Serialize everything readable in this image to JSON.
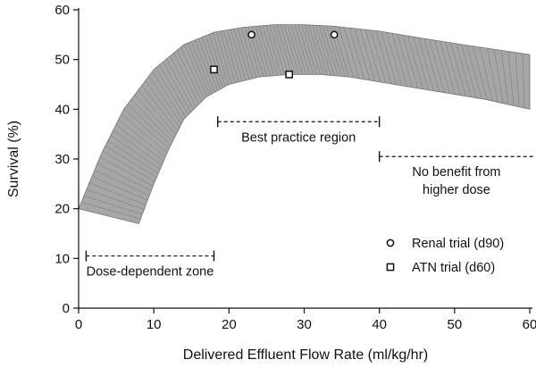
{
  "chart_data": {
    "type": "scatter",
    "xlabel": "Delivered Effluent Flow Rate (ml/kg/hr)",
    "ylabel": "Survival (%)",
    "xlim": [
      0,
      60
    ],
    "ylim": [
      0,
      60
    ],
    "xticks": [
      "0",
      "10",
      "20",
      "30",
      "40",
      "50",
      "60"
    ],
    "yticks": [
      "0",
      "10",
      "20",
      "30",
      "40",
      "50",
      "60"
    ],
    "band": {
      "color": "#a6a6a6",
      "stroke": "#6f6f6f",
      "upper": [
        [
          0,
          20
        ],
        [
          3,
          31
        ],
        [
          6,
          40
        ],
        [
          10,
          48
        ],
        [
          14,
          53
        ],
        [
          18,
          55.5
        ],
        [
          22,
          56.5
        ],
        [
          26,
          57
        ],
        [
          30,
          57
        ],
        [
          34,
          56.7
        ],
        [
          40,
          55.7
        ],
        [
          46,
          54.2
        ],
        [
          52,
          52.8
        ],
        [
          60,
          51
        ]
      ],
      "lower": [
        [
          8,
          17
        ],
        [
          10,
          25
        ],
        [
          12,
          32
        ],
        [
          14,
          38
        ],
        [
          17,
          42.5
        ],
        [
          20,
          45
        ],
        [
          24,
          46.5
        ],
        [
          28,
          47
        ],
        [
          32,
          47
        ],
        [
          36,
          46.5
        ],
        [
          42,
          45
        ],
        [
          48,
          43.5
        ],
        [
          54,
          42
        ],
        [
          60,
          40
        ]
      ]
    },
    "series": [
      {
        "name": "Renal trial (d90)",
        "marker": "circle",
        "points": [
          [
            23,
            55
          ],
          [
            34,
            55
          ]
        ]
      },
      {
        "name": "ATN trial (d60)",
        "marker": "square",
        "points": [
          [
            18,
            48
          ],
          [
            28,
            47
          ]
        ]
      }
    ],
    "annotations": [
      {
        "text": [
          "Dose-dependent zone"
        ],
        "range": [
          1,
          18
        ],
        "y": 10.5
      },
      {
        "text": [
          "Best practice region"
        ],
        "range": [
          18.5,
          40
        ],
        "y": 37.5
      },
      {
        "text": [
          "No benefit from",
          "higher dose"
        ],
        "range": [
          40,
          60.5
        ],
        "y": 30.5
      }
    ],
    "legend_position": "bottom-right"
  }
}
